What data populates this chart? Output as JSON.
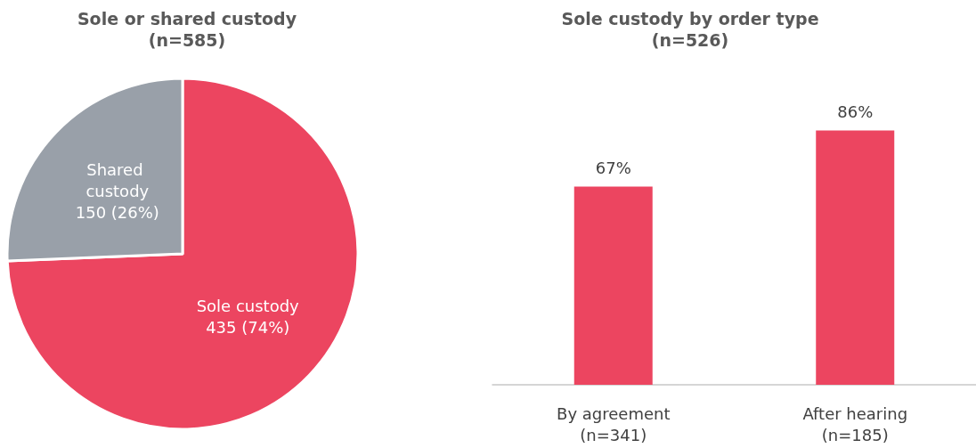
{
  "chart_data": [
    {
      "type": "pie",
      "title": "Sole or shared custody\n(n=585)",
      "categories": [
        "Sole custody",
        "Shared custody"
      ],
      "values": [
        435,
        150
      ],
      "colors": [
        "#ec4560",
        "#99a0a9"
      ],
      "value_labels": [
        "435 (74%)",
        "150 (26%)"
      ],
      "legend": false
    },
    {
      "type": "bar",
      "title": "Sole custody by order type\n(n=526)",
      "categories": [
        "By agreement\n(n=341)",
        "After hearing\n(n=185)"
      ],
      "values": [
        67,
        86
      ],
      "color": "#ec4560",
      "value_labels": [
        "67%",
        "86%"
      ],
      "legend": false
    }
  ]
}
